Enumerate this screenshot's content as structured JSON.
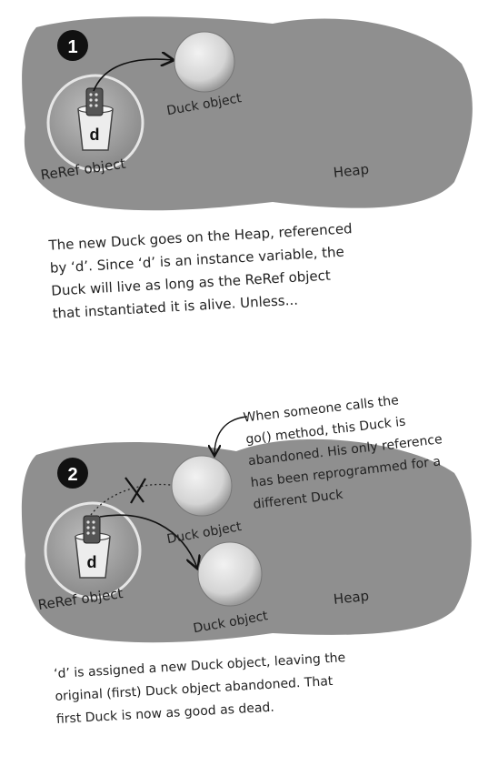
{
  "panel1": {
    "step_number": "1",
    "heap_label": "Heap",
    "reref_label": "ReRef object",
    "duck_label": "Duck object",
    "var_label": "d",
    "caption_lines": [
      "The new Duck goes on the Heap, referenced",
      "by ‘d’. Since ‘d’ is an instance variable, the",
      "Duck will live as long as the ReRef object",
      "that instantiated it is alive. Unless..."
    ]
  },
  "panel2": {
    "step_number": "2",
    "heap_label": "Heap",
    "reref_label": "ReRef object",
    "old_duck_label": "Duck object",
    "new_duck_label": "Duck object",
    "var_label": "d",
    "callout_lines": [
      "When someone calls the",
      "go() method, this Duck is",
      "abandoned. His only reference",
      "has been reprogrammed for a",
      "different Duck"
    ],
    "caption_lines": [
      "‘d’ is assigned a new Duck object, leaving the",
      "original (first) Duck object abandoned. That",
      "first Duck is now as good as dead."
    ]
  },
  "colors": {
    "heap_fill": "#8f8f8f",
    "object_fill": "#cfcfcf",
    "badge": "#111111"
  }
}
